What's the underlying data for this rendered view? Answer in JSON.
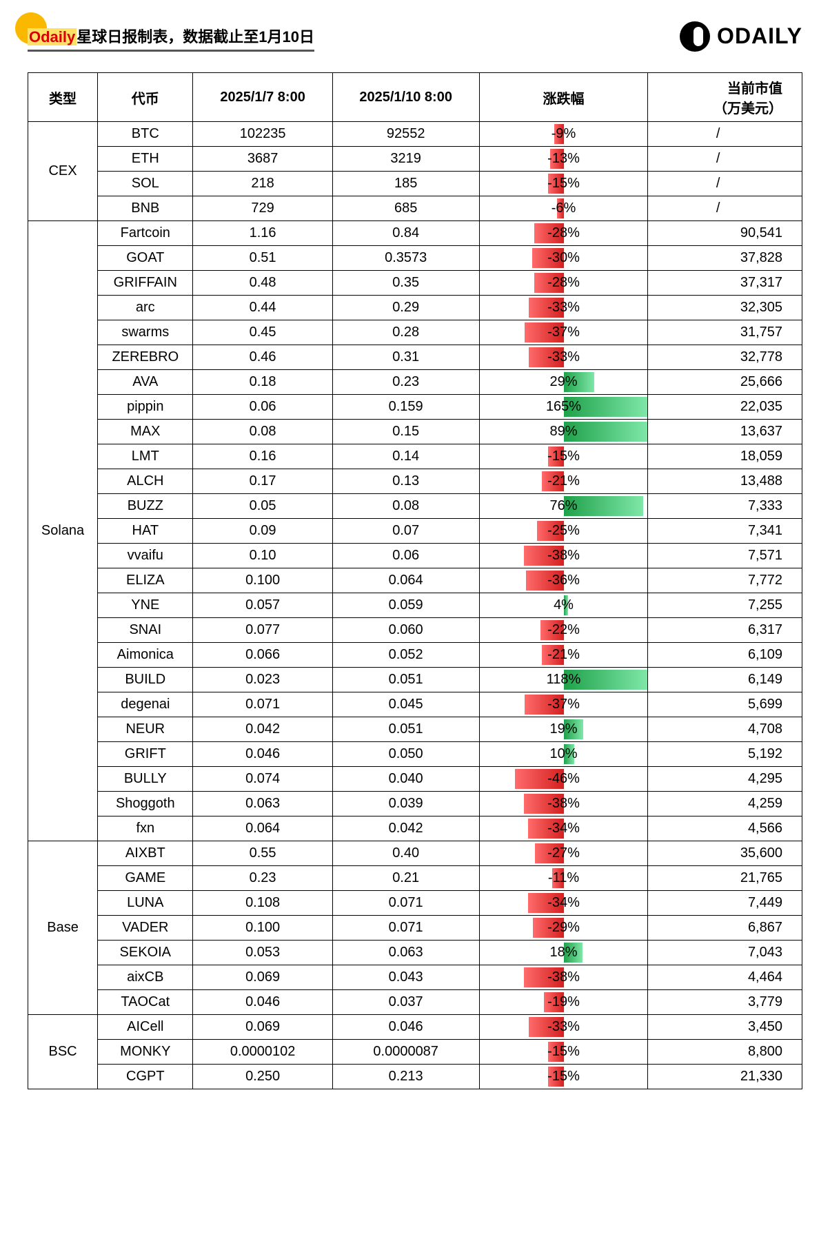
{
  "header": {
    "title_highlight": "Odaily",
    "title_rest": "星球日报制表，数据截止至1月10日",
    "logo_text": "ODAILY"
  },
  "table": {
    "columns": [
      "类型",
      "代币",
      "2025/1/7 8:00",
      "2025/1/10 8:00",
      "涨跌幅",
      "当前市值\n（万美元）"
    ],
    "change_scale_pct": 80,
    "colors": {
      "neg_bar": "#d32020",
      "pos_bar": "#1fa14a",
      "border": "#000000"
    },
    "groups": [
      {
        "type": "CEX",
        "rows": [
          {
            "token": "BTC",
            "p1": "102235",
            "p2": "92552",
            "change": -9,
            "mcap": "/"
          },
          {
            "token": "ETH",
            "p1": "3687",
            "p2": "3219",
            "change": -13,
            "mcap": "/"
          },
          {
            "token": "SOL",
            "p1": "218",
            "p2": "185",
            "change": -15,
            "mcap": "/"
          },
          {
            "token": "BNB",
            "p1": "729",
            "p2": "685",
            "change": -6,
            "mcap": "/"
          }
        ]
      },
      {
        "type": "Solana",
        "rows": [
          {
            "token": "Fartcoin",
            "p1": "1.16",
            "p2": "0.84",
            "change": -28,
            "mcap": "90,541"
          },
          {
            "token": "GOAT",
            "p1": "0.51",
            "p2": "0.3573",
            "change": -30,
            "mcap": "37,828"
          },
          {
            "token": "GRIFFAIN",
            "p1": "0.48",
            "p2": "0.35",
            "change": -28,
            "mcap": "37,317"
          },
          {
            "token": "arc",
            "p1": "0.44",
            "p2": "0.29",
            "change": -33,
            "mcap": "32,305"
          },
          {
            "token": "swarms",
            "p1": "0.45",
            "p2": "0.28",
            "change": -37,
            "mcap": "31,757"
          },
          {
            "token": "ZEREBRO",
            "p1": "0.46",
            "p2": "0.31",
            "change": -33,
            "mcap": "32,778"
          },
          {
            "token": "AVA",
            "p1": "0.18",
            "p2": "0.23",
            "change": 29,
            "mcap": "25,666"
          },
          {
            "token": "pippin",
            "p1": "0.06",
            "p2": "0.159",
            "change": 165,
            "mcap": "22,035"
          },
          {
            "token": "MAX",
            "p1": "0.08",
            "p2": "0.15",
            "change": 89,
            "mcap": "13,637"
          },
          {
            "token": "LMT",
            "p1": "0.16",
            "p2": "0.14",
            "change": -15,
            "mcap": "18,059"
          },
          {
            "token": "ALCH",
            "p1": "0.17",
            "p2": "0.13",
            "change": -21,
            "mcap": "13,488"
          },
          {
            "token": "BUZZ",
            "p1": "0.05",
            "p2": "0.08",
            "change": 76,
            "mcap": "7,333"
          },
          {
            "token": "HAT",
            "p1": "0.09",
            "p2": "0.07",
            "change": -25,
            "mcap": "7,341"
          },
          {
            "token": "vvaifu",
            "p1": "0.10",
            "p2": "0.06",
            "change": -38,
            "mcap": "7,571"
          },
          {
            "token": "ELIZA",
            "p1": "0.100",
            "p2": "0.064",
            "change": -36,
            "mcap": "7,772"
          },
          {
            "token": "YNE",
            "p1": "0.057",
            "p2": "0.059",
            "change": 4,
            "mcap": "7,255"
          },
          {
            "token": "SNAI",
            "p1": "0.077",
            "p2": "0.060",
            "change": -22,
            "mcap": "6,317"
          },
          {
            "token": "Aimonica",
            "p1": "0.066",
            "p2": "0.052",
            "change": -21,
            "mcap": "6,109"
          },
          {
            "token": "BUILD",
            "p1": "0.023",
            "p2": "0.051",
            "change": 118,
            "mcap": "6,149"
          },
          {
            "token": "degenai",
            "p1": "0.071",
            "p2": "0.045",
            "change": -37,
            "mcap": "5,699"
          },
          {
            "token": "NEUR",
            "p1": "0.042",
            "p2": "0.051",
            "change": 19,
            "mcap": "4,708"
          },
          {
            "token": "GRIFT",
            "p1": "0.046",
            "p2": "0.050",
            "change": 10,
            "mcap": "5,192"
          },
          {
            "token": "BULLY",
            "p1": "0.074",
            "p2": "0.040",
            "change": -46,
            "mcap": "4,295"
          },
          {
            "token": "Shoggoth",
            "p1": "0.063",
            "p2": "0.039",
            "change": -38,
            "mcap": "4,259"
          },
          {
            "token": "fxn",
            "p1": "0.064",
            "p2": "0.042",
            "change": -34,
            "mcap": "4,566"
          }
        ]
      },
      {
        "type": "Base",
        "rows": [
          {
            "token": "AIXBT",
            "p1": "0.55",
            "p2": "0.40",
            "change": -27,
            "mcap": "35,600"
          },
          {
            "token": "GAME",
            "p1": "0.23",
            "p2": "0.21",
            "change": -11,
            "mcap": "21,765"
          },
          {
            "token": "LUNA",
            "p1": "0.108",
            "p2": "0.071",
            "change": -34,
            "mcap": "7,449"
          },
          {
            "token": "VADER",
            "p1": "0.100",
            "p2": "0.071",
            "change": -29,
            "mcap": "6,867"
          },
          {
            "token": "SEKOIA",
            "p1": "0.053",
            "p2": "0.063",
            "change": 18,
            "mcap": "7,043"
          },
          {
            "token": "aixCB",
            "p1": "0.069",
            "p2": "0.043",
            "change": -38,
            "mcap": "4,464"
          },
          {
            "token": "TAOCat",
            "p1": "0.046",
            "p2": "0.037",
            "change": -19,
            "mcap": "3,779"
          }
        ]
      },
      {
        "type": "BSC",
        "rows": [
          {
            "token": "AICell",
            "p1": "0.069",
            "p2": "0.046",
            "change": -33,
            "mcap": "3,450"
          },
          {
            "token": "MONKY",
            "p1": "0.0000102",
            "p2": "0.0000087",
            "change": -15,
            "mcap": "8,800"
          },
          {
            "token": "CGPT",
            "p1": "0.250",
            "p2": "0.213",
            "change": -15,
            "mcap": "21,330"
          }
        ]
      }
    ]
  }
}
